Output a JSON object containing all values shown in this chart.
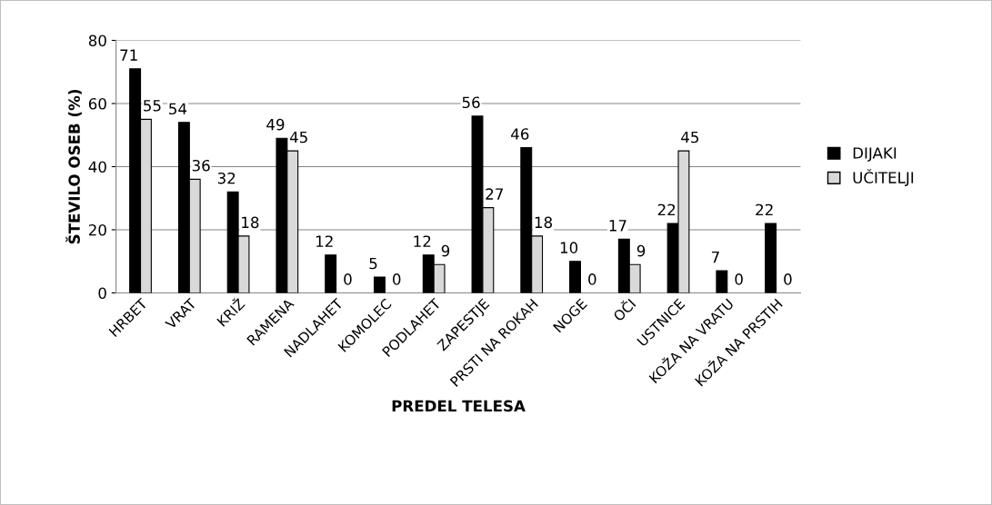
{
  "chart_data": {
    "type": "bar",
    "xlabel": "PREDEL TELESA",
    "ylabel": "ŠTEVILO OSEB (%)",
    "categories": [
      "HRBET",
      "VRAT",
      "KRIŽ",
      "RAMENA",
      "NADLAHET",
      "KOMOLEC",
      "PODLAHET",
      "ZAPESTJE",
      "PRSTI NA ROKAH",
      "NOGE",
      "OČI",
      "USTNICE",
      "KOŽA NA VRATU",
      "KOŽA NA PRSTIH"
    ],
    "series": [
      {
        "name": "DIJAKI",
        "color": "#000000",
        "values": [
          71,
          54,
          32,
          49,
          12,
          5,
          12,
          56,
          46,
          10,
          17,
          22,
          7,
          22
        ]
      },
      {
        "name": "UČITELJI",
        "color": "#d9d9d9",
        "values": [
          55,
          36,
          18,
          45,
          0,
          0,
          9,
          27,
          18,
          0,
          9,
          45,
          0,
          0
        ]
      }
    ],
    "ylim": [
      0,
      80
    ],
    "yticks": [
      0,
      20,
      40,
      60,
      80
    ],
    "grid": "y",
    "legend": "right",
    "data_labels": true
  }
}
